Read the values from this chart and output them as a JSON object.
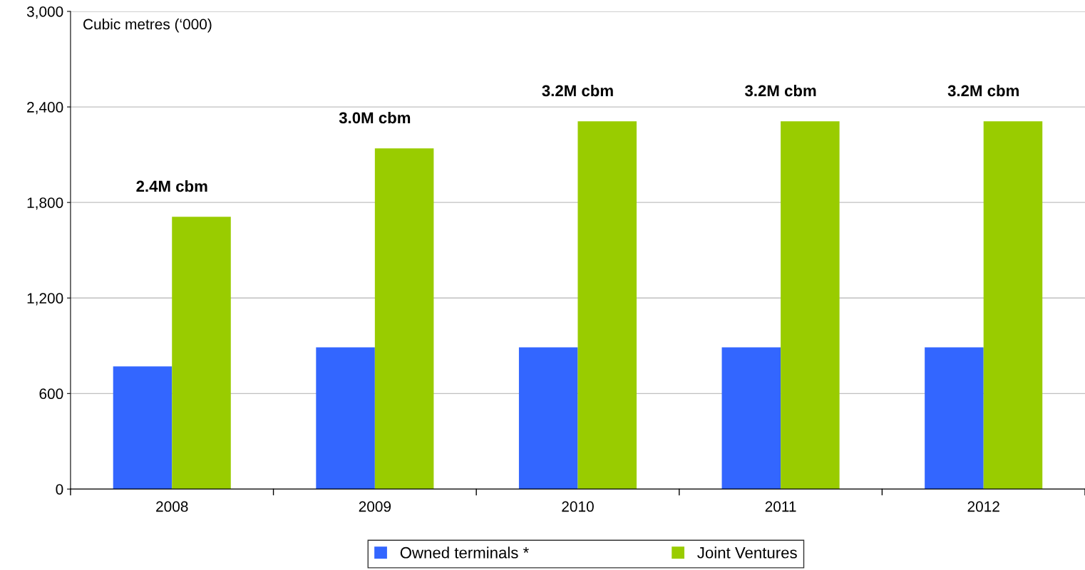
{
  "chart_data": {
    "type": "bar",
    "ylabel": "Cubic metres (‘000)",
    "categories": [
      "2008",
      "2009",
      "2010",
      "2011",
      "2012"
    ],
    "series": [
      {
        "name": "Owned terminals *",
        "color": "#3366ff",
        "values": [
          770,
          890,
          890,
          890,
          890
        ]
      },
      {
        "name": "Joint Ventures",
        "color": "#99cc00",
        "values": [
          1710,
          2140,
          2310,
          2310,
          2310
        ]
      }
    ],
    "ylim": [
      0,
      3000
    ],
    "yticks": [
      0,
      600,
      {
        "value": 1200,
        "label": "1,200"
      },
      {
        "value": 1800,
        "label": "1,800"
      },
      {
        "value": 2400,
        "label": "2,400"
      },
      {
        "value": 3000,
        "label": "3,000"
      }
    ],
    "grid": "y",
    "legend": "bottom",
    "annotations": [
      "2.4M cbm",
      "3.0M cbm",
      "3.2M cbm",
      "3.2M cbm",
      "3.2M cbm"
    ]
  }
}
